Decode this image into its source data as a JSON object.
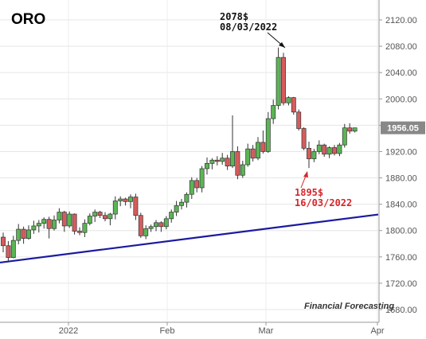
{
  "chart_data": {
    "type": "candlestick",
    "title": "ORO",
    "watermark": "Financial Forecasting",
    "y_ticks": [
      "2120.00",
      "2080.00",
      "2040.00",
      "2000.00",
      "1960.00",
      "1920.00",
      "1880.00",
      "1840.00",
      "1800.00",
      "1760.00",
      "1720.00",
      "1680.00"
    ],
    "ylim": [
      1665,
      2135
    ],
    "x_ticks": [
      "2022",
      "Feb",
      "Mar",
      "Apr"
    ],
    "current_price": 1956.05,
    "current_price_label": "1956.05",
    "annotations": [
      {
        "id": "high",
        "line1": "2078$",
        "line2": "08/03/2022",
        "color": "#111111"
      },
      {
        "id": "low",
        "line1": "1895$",
        "line2": "16/03/2022",
        "color": "#d6262b"
      }
    ],
    "trendline": {
      "points": [
        [
          0,
          1752
        ],
        [
          61,
          1812
        ]
      ],
      "color": "#1a1aa0"
    },
    "grid": true,
    "up_color": "#5bb554",
    "down_color": "#d65c5c",
    "candles": [
      [
        1790,
        1797,
        1767,
        1777
      ],
      [
        1777,
        1784,
        1752,
        1759
      ],
      [
        1759,
        1792,
        1758,
        1785
      ],
      [
        1785,
        1810,
        1779,
        1802
      ],
      [
        1802,
        1806,
        1780,
        1788
      ],
      [
        1788,
        1808,
        1786,
        1801
      ],
      [
        1801,
        1815,
        1795,
        1807
      ],
      [
        1807,
        1816,
        1797,
        1811
      ],
      [
        1811,
        1820,
        1803,
        1817
      ],
      [
        1817,
        1821,
        1788,
        1803
      ],
      [
        1803,
        1823,
        1800,
        1816
      ],
      [
        1816,
        1834,
        1811,
        1828
      ],
      [
        1828,
        1830,
        1798,
        1807
      ],
      [
        1807,
        1829,
        1804,
        1825
      ],
      [
        1825,
        1826,
        1794,
        1799
      ],
      [
        1799,
        1805,
        1793,
        1797
      ],
      [
        1797,
        1817,
        1790,
        1811
      ],
      [
        1811,
        1826,
        1808,
        1822
      ],
      [
        1822,
        1832,
        1813,
        1828
      ],
      [
        1828,
        1830,
        1819,
        1823
      ],
      [
        1823,
        1828,
        1814,
        1818
      ],
      [
        1818,
        1827,
        1808,
        1825
      ],
      [
        1825,
        1852,
        1817,
        1845
      ],
      [
        1845,
        1852,
        1837,
        1848
      ],
      [
        1848,
        1850,
        1838,
        1844
      ],
      [
        1844,
        1855,
        1834,
        1851
      ],
      [
        1851,
        1856,
        1816,
        1823
      ],
      [
        1823,
        1827,
        1789,
        1792
      ],
      [
        1792,
        1808,
        1787,
        1803
      ],
      [
        1803,
        1809,
        1798,
        1806
      ],
      [
        1806,
        1816,
        1799,
        1812
      ],
      [
        1812,
        1814,
        1798,
        1806
      ],
      [
        1806,
        1822,
        1802,
        1818
      ],
      [
        1818,
        1832,
        1812,
        1828
      ],
      [
        1828,
        1845,
        1822,
        1838
      ],
      [
        1838,
        1848,
        1832,
        1843
      ],
      [
        1843,
        1858,
        1835,
        1855
      ],
      [
        1855,
        1881,
        1848,
        1876
      ],
      [
        1876,
        1880,
        1858,
        1865
      ],
      [
        1865,
        1898,
        1858,
        1894
      ],
      [
        1894,
        1911,
        1885,
        1902
      ],
      [
        1902,
        1910,
        1893,
        1907
      ],
      [
        1907,
        1913,
        1899,
        1905
      ],
      [
        1905,
        1918,
        1900,
        1910
      ],
      [
        1910,
        1915,
        1892,
        1898
      ],
      [
        1898,
        1975,
        1895,
        1920
      ],
      [
        1920,
        1928,
        1878,
        1884
      ],
      [
        1884,
        1906,
        1880,
        1900
      ],
      [
        1900,
        1932,
        1897,
        1924
      ],
      [
        1924,
        1930,
        1905,
        1910
      ],
      [
        1910,
        1942,
        1907,
        1934
      ],
      [
        1934,
        1952,
        1917,
        1920
      ],
      [
        1920,
        1980,
        1918,
        1970
      ],
      [
        1970,
        1999,
        1962,
        1990
      ],
      [
        1990,
        2078,
        1984,
        2063
      ],
      [
        2063,
        2070,
        1990,
        1994
      ],
      [
        1994,
        2004,
        1990,
        2002
      ],
      [
        2002,
        2003,
        1976,
        1980
      ],
      [
        1980,
        1984,
        1952,
        1955
      ],
      [
        1955,
        1957,
        1922,
        1925
      ],
      [
        1925,
        1935,
        1895,
        1909
      ],
      [
        1909,
        1924,
        1904,
        1920
      ],
      [
        1920,
        1937,
        1916,
        1930
      ],
      [
        1930,
        1932,
        1912,
        1916
      ],
      [
        1916,
        1928,
        1910,
        1926
      ],
      [
        1926,
        1930,
        1914,
        1917
      ],
      [
        1917,
        1933,
        1913,
        1930
      ],
      [
        1930,
        1962,
        1926,
        1956
      ],
      [
        1956,
        1963,
        1947,
        1951
      ],
      [
        1951,
        1956,
        1949,
        1956
      ]
    ]
  }
}
